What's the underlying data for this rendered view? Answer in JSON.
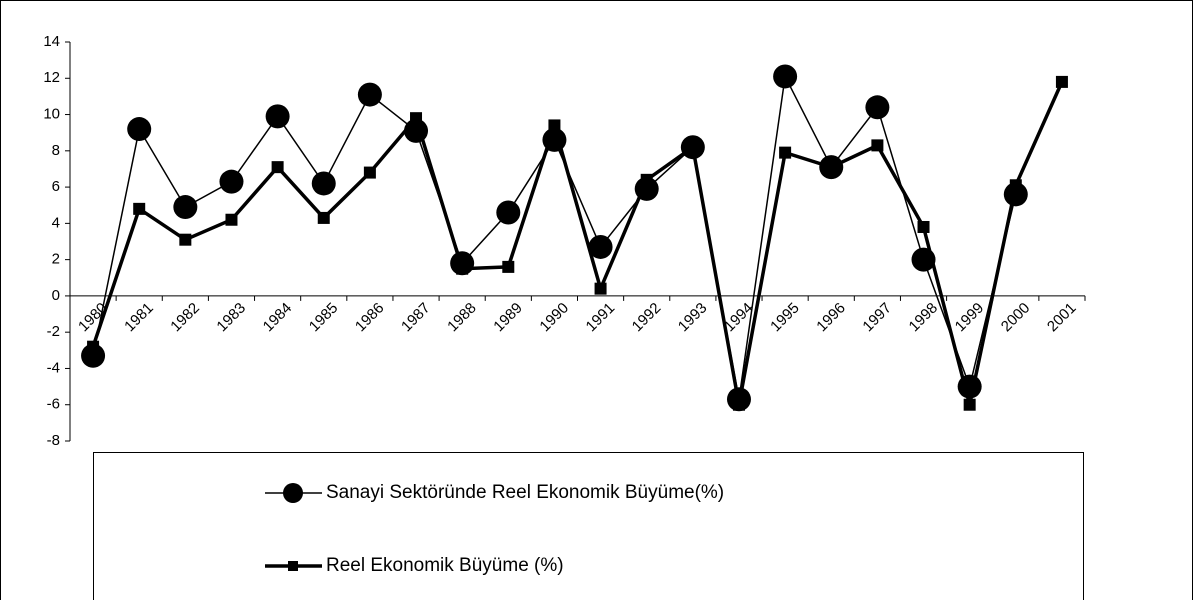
{
  "chart_data": {
    "type": "line",
    "categories": [
      "1980",
      "1981",
      "1982",
      "1983",
      "1984",
      "1985",
      "1986",
      "1987",
      "1988",
      "1989",
      "1990",
      "1991",
      "1992",
      "1993",
      "1994",
      "1995",
      "1996",
      "1997",
      "1998",
      "1999",
      "2000",
      "2001"
    ],
    "series": [
      {
        "name": "Sanayi Sektöründe Reel Ekonomik Büyüme(%)",
        "color": "#000000",
        "marker": "circle",
        "values": [
          -3.3,
          9.2,
          4.9,
          6.3,
          9.9,
          6.2,
          11.1,
          9.1,
          1.8,
          4.6,
          8.6,
          2.7,
          5.9,
          8.2,
          -5.7,
          12.1,
          7.1,
          10.4,
          2.0,
          -5.0,
          5.6,
          null
        ]
      },
      {
        "name": "Reel Ekonomik Büyüme (%)",
        "color": "#000000",
        "marker": "square",
        "values": [
          -2.8,
          4.8,
          3.1,
          4.2,
          7.1,
          4.3,
          6.8,
          9.8,
          1.5,
          1.6,
          9.4,
          0.4,
          6.4,
          8.2,
          -6.0,
          7.9,
          7.1,
          8.3,
          3.8,
          -6.0,
          6.1,
          11.8
        ]
      }
    ],
    "ylim": [
      -8,
      14
    ],
    "yticks": [
      -8,
      -6,
      -4,
      -2,
      0,
      2,
      4,
      6,
      8,
      10,
      12,
      14
    ],
    "grid": false,
    "legend": "bottom"
  }
}
